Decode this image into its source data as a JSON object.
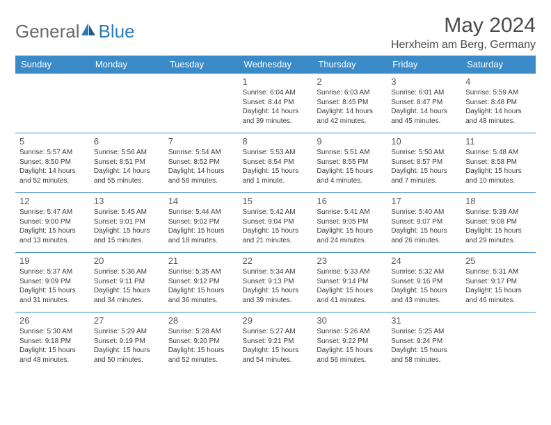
{
  "brand": {
    "part1": "General",
    "part2": "Blue"
  },
  "title": "May 2024",
  "location": "Herxheim am Berg, Germany",
  "colors": {
    "header_bg": "#3b8bc9",
    "header_text": "#ffffff",
    "border": "#3b8bc9",
    "text": "#3a3a3a",
    "brand_grey": "#6a6a6a",
    "brand_blue": "#2a7ab9"
  },
  "day_labels": [
    "Sunday",
    "Monday",
    "Tuesday",
    "Wednesday",
    "Thursday",
    "Friday",
    "Saturday"
  ],
  "weeks": [
    [
      {
        "num": "",
        "sunrise": "",
        "sunset": "",
        "daylight": ""
      },
      {
        "num": "",
        "sunrise": "",
        "sunset": "",
        "daylight": ""
      },
      {
        "num": "",
        "sunrise": "",
        "sunset": "",
        "daylight": ""
      },
      {
        "num": "1",
        "sunrise": "Sunrise: 6:04 AM",
        "sunset": "Sunset: 8:44 PM",
        "daylight": "Daylight: 14 hours and 39 minutes."
      },
      {
        "num": "2",
        "sunrise": "Sunrise: 6:03 AM",
        "sunset": "Sunset: 8:45 PM",
        "daylight": "Daylight: 14 hours and 42 minutes."
      },
      {
        "num": "3",
        "sunrise": "Sunrise: 6:01 AM",
        "sunset": "Sunset: 8:47 PM",
        "daylight": "Daylight: 14 hours and 45 minutes."
      },
      {
        "num": "4",
        "sunrise": "Sunrise: 5:59 AM",
        "sunset": "Sunset: 8:48 PM",
        "daylight": "Daylight: 14 hours and 48 minutes."
      }
    ],
    [
      {
        "num": "5",
        "sunrise": "Sunrise: 5:57 AM",
        "sunset": "Sunset: 8:50 PM",
        "daylight": "Daylight: 14 hours and 52 minutes."
      },
      {
        "num": "6",
        "sunrise": "Sunrise: 5:56 AM",
        "sunset": "Sunset: 8:51 PM",
        "daylight": "Daylight: 14 hours and 55 minutes."
      },
      {
        "num": "7",
        "sunrise": "Sunrise: 5:54 AM",
        "sunset": "Sunset: 8:52 PM",
        "daylight": "Daylight: 14 hours and 58 minutes."
      },
      {
        "num": "8",
        "sunrise": "Sunrise: 5:53 AM",
        "sunset": "Sunset: 8:54 PM",
        "daylight": "Daylight: 15 hours and 1 minute."
      },
      {
        "num": "9",
        "sunrise": "Sunrise: 5:51 AM",
        "sunset": "Sunset: 8:55 PM",
        "daylight": "Daylight: 15 hours and 4 minutes."
      },
      {
        "num": "10",
        "sunrise": "Sunrise: 5:50 AM",
        "sunset": "Sunset: 8:57 PM",
        "daylight": "Daylight: 15 hours and 7 minutes."
      },
      {
        "num": "11",
        "sunrise": "Sunrise: 5:48 AM",
        "sunset": "Sunset: 8:58 PM",
        "daylight": "Daylight: 15 hours and 10 minutes."
      }
    ],
    [
      {
        "num": "12",
        "sunrise": "Sunrise: 5:47 AM",
        "sunset": "Sunset: 9:00 PM",
        "daylight": "Daylight: 15 hours and 13 minutes."
      },
      {
        "num": "13",
        "sunrise": "Sunrise: 5:45 AM",
        "sunset": "Sunset: 9:01 PM",
        "daylight": "Daylight: 15 hours and 15 minutes."
      },
      {
        "num": "14",
        "sunrise": "Sunrise: 5:44 AM",
        "sunset": "Sunset: 9:02 PM",
        "daylight": "Daylight: 15 hours and 18 minutes."
      },
      {
        "num": "15",
        "sunrise": "Sunrise: 5:42 AM",
        "sunset": "Sunset: 9:04 PM",
        "daylight": "Daylight: 15 hours and 21 minutes."
      },
      {
        "num": "16",
        "sunrise": "Sunrise: 5:41 AM",
        "sunset": "Sunset: 9:05 PM",
        "daylight": "Daylight: 15 hours and 24 minutes."
      },
      {
        "num": "17",
        "sunrise": "Sunrise: 5:40 AM",
        "sunset": "Sunset: 9:07 PM",
        "daylight": "Daylight: 15 hours and 26 minutes."
      },
      {
        "num": "18",
        "sunrise": "Sunrise: 5:39 AM",
        "sunset": "Sunset: 9:08 PM",
        "daylight": "Daylight: 15 hours and 29 minutes."
      }
    ],
    [
      {
        "num": "19",
        "sunrise": "Sunrise: 5:37 AM",
        "sunset": "Sunset: 9:09 PM",
        "daylight": "Daylight: 15 hours and 31 minutes."
      },
      {
        "num": "20",
        "sunrise": "Sunrise: 5:36 AM",
        "sunset": "Sunset: 9:11 PM",
        "daylight": "Daylight: 15 hours and 34 minutes."
      },
      {
        "num": "21",
        "sunrise": "Sunrise: 5:35 AM",
        "sunset": "Sunset: 9:12 PM",
        "daylight": "Daylight: 15 hours and 36 minutes."
      },
      {
        "num": "22",
        "sunrise": "Sunrise: 5:34 AM",
        "sunset": "Sunset: 9:13 PM",
        "daylight": "Daylight: 15 hours and 39 minutes."
      },
      {
        "num": "23",
        "sunrise": "Sunrise: 5:33 AM",
        "sunset": "Sunset: 9:14 PM",
        "daylight": "Daylight: 15 hours and 41 minutes."
      },
      {
        "num": "24",
        "sunrise": "Sunrise: 5:32 AM",
        "sunset": "Sunset: 9:16 PM",
        "daylight": "Daylight: 15 hours and 43 minutes."
      },
      {
        "num": "25",
        "sunrise": "Sunrise: 5:31 AM",
        "sunset": "Sunset: 9:17 PM",
        "daylight": "Daylight: 15 hours and 46 minutes."
      }
    ],
    [
      {
        "num": "26",
        "sunrise": "Sunrise: 5:30 AM",
        "sunset": "Sunset: 9:18 PM",
        "daylight": "Daylight: 15 hours and 48 minutes."
      },
      {
        "num": "27",
        "sunrise": "Sunrise: 5:29 AM",
        "sunset": "Sunset: 9:19 PM",
        "daylight": "Daylight: 15 hours and 50 minutes."
      },
      {
        "num": "28",
        "sunrise": "Sunrise: 5:28 AM",
        "sunset": "Sunset: 9:20 PM",
        "daylight": "Daylight: 15 hours and 52 minutes."
      },
      {
        "num": "29",
        "sunrise": "Sunrise: 5:27 AM",
        "sunset": "Sunset: 9:21 PM",
        "daylight": "Daylight: 15 hours and 54 minutes."
      },
      {
        "num": "30",
        "sunrise": "Sunrise: 5:26 AM",
        "sunset": "Sunset: 9:22 PM",
        "daylight": "Daylight: 15 hours and 56 minutes."
      },
      {
        "num": "31",
        "sunrise": "Sunrise: 5:25 AM",
        "sunset": "Sunset: 9:24 PM",
        "daylight": "Daylight: 15 hours and 58 minutes."
      },
      {
        "num": "",
        "sunrise": "",
        "sunset": "",
        "daylight": ""
      }
    ]
  ]
}
